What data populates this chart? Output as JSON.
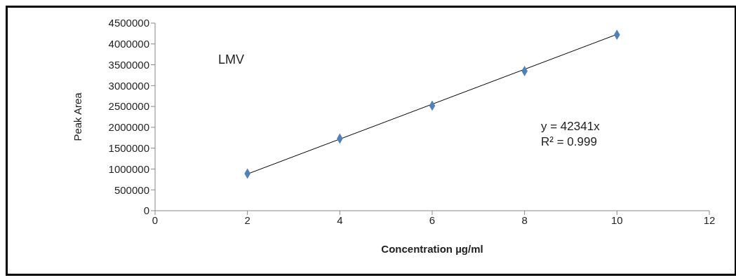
{
  "chart_data": {
    "type": "scatter",
    "xlabel": "Concentration µg/ml",
    "ylabel": "Peak Area",
    "x": [
      2,
      4,
      6,
      8,
      10
    ],
    "series": [
      {
        "color": "#4f81bd",
        "values": [
          890000,
          1730000,
          2520000,
          3350000,
          4220000
        ],
        "marker": "diamond"
      },
      {
        "type": "line",
        "color": "#000000",
        "x": [
          2,
          10
        ],
        "values": [
          880000,
          4230000
        ],
        "marker": "none"
      }
    ],
    "xlim": [
      0,
      12
    ],
    "xticks": [
      0,
      2,
      4,
      6,
      8,
      10,
      12
    ],
    "ylim": [
      0,
      4500000
    ],
    "yticks": [
      0,
      500000,
      1000000,
      1500000,
      2000000,
      2500000,
      3000000,
      3500000,
      4000000,
      4500000
    ],
    "grid": false,
    "legend": false,
    "annotations": [
      "LMV",
      "y = 42341x",
      "R² = 0.999"
    ]
  }
}
